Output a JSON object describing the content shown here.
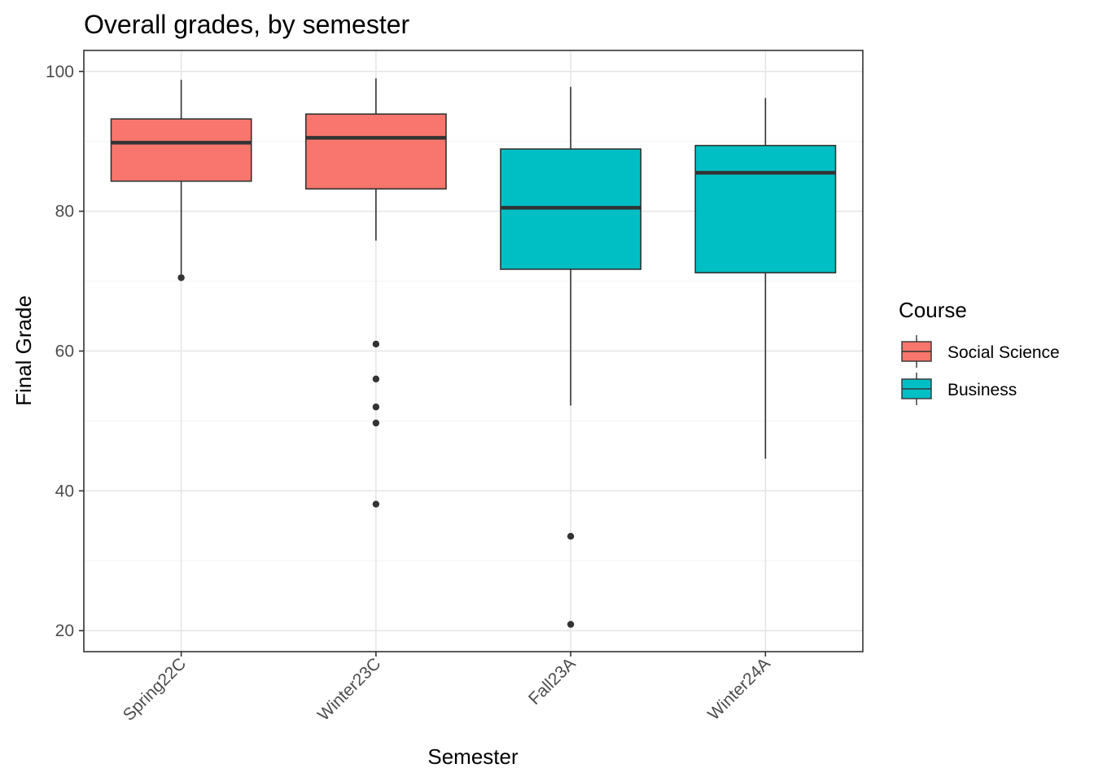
{
  "chart_data": {
    "type": "boxplot",
    "title": "Overall grades, by semester",
    "xlabel": "Semester",
    "ylabel": "Final Grade",
    "ylim": [
      17,
      103
    ],
    "yticks": [
      20,
      40,
      60,
      80,
      100
    ],
    "grid": true,
    "legend": {
      "title": "Course",
      "placement": "right",
      "entries": [
        {
          "label": "Social Science",
          "color": "#F8766D"
        },
        {
          "label": "Business",
          "color": "#00BFC4"
        }
      ]
    },
    "categories": [
      "Spring22C",
      "Winter23C",
      "Fall23A",
      "Winter24A"
    ],
    "boxes": [
      {
        "category": "Spring22C",
        "course": "Social Science",
        "whisker_low": 71,
        "q1": 84.3,
        "median": 89.8,
        "q3": 93.2,
        "whisker_high": 98.8,
        "outliers": [
          70.5
        ]
      },
      {
        "category": "Winter23C",
        "course": "Social Science",
        "whisker_low": 75.8,
        "q1": 83.2,
        "median": 90.5,
        "q3": 93.9,
        "whisker_high": 99.0,
        "outliers": [
          61.0,
          56.0,
          52.0,
          49.7,
          38.1
        ]
      },
      {
        "category": "Fall23A",
        "course": "Business",
        "whisker_low": 52.2,
        "q1": 71.7,
        "median": 80.5,
        "q3": 88.9,
        "whisker_high": 97.8,
        "outliers": [
          33.5,
          20.9
        ]
      },
      {
        "category": "Winter24A",
        "course": "Business",
        "whisker_low": 44.6,
        "q1": 71.2,
        "median": 85.5,
        "q3": 89.4,
        "whisker_high": 96.2,
        "outliers": []
      }
    ]
  }
}
